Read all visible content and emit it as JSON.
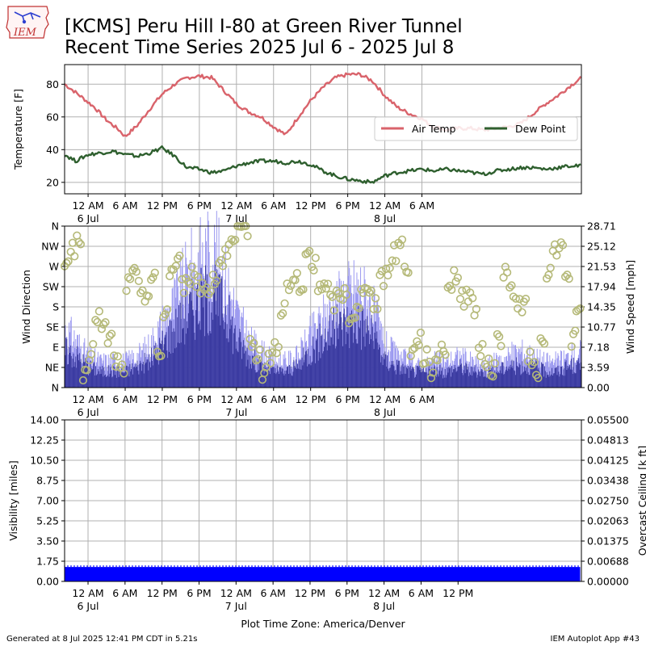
{
  "header": {
    "logo_text": "IEM",
    "title_line1": "[KCMS] Peru Hill I-80 at Green River Tunnel",
    "title_line2": "Recent Time Series 2025 Jul 6 - 2025 Jul 8"
  },
  "footer": {
    "generated": "Generated at 8 Jul 2025 12:41 PM CDT in 5.21s",
    "app": "IEM Autoplot App #43"
  },
  "colors": {
    "air_temp": "#d9636b",
    "dew_point": "#2e5f2e",
    "wind_gust_fill": "#9b99f0",
    "wind_speed_fill": "#3a3aa0",
    "wind_dir_marker": "#b5b978",
    "visibility": "#0000ff",
    "ceiling_label": "#008000",
    "grid": "#b0b0b0"
  },
  "chart_data": [
    {
      "type": "line",
      "title": "",
      "ylabel": "Temperature [F]",
      "ylim": [
        13,
        92
      ],
      "yticks": [
        "20",
        "40",
        "60",
        "80"
      ],
      "xlim_hours": [
        -3.8,
        79.8
      ],
      "xticks": [
        {
          "h": 0,
          "label": "12 AM",
          "date": "6 Jul"
        },
        {
          "h": 6,
          "label": "6 AM"
        },
        {
          "h": 12,
          "label": "12 PM"
        },
        {
          "h": 18,
          "label": "6 PM"
        },
        {
          "h": 24,
          "label": "12 AM",
          "date": "7 Jul"
        },
        {
          "h": 30,
          "label": "6 AM"
        },
        {
          "h": 36,
          "label": "12 PM"
        },
        {
          "h": 42,
          "label": "6 PM"
        },
        {
          "h": 48,
          "label": "12 AM",
          "date": "8 Jul"
        },
        {
          "h": 54,
          "label": "6 AM"
        }
      ],
      "grid": true,
      "legend_position": "right",
      "series": [
        {
          "name": "Air Temp",
          "x": [
            -3.8,
            -2,
            0,
            1,
            2,
            3,
            4,
            5,
            6,
            8,
            10,
            12,
            14,
            16,
            18,
            20,
            22,
            24,
            26,
            28,
            30,
            32,
            34,
            36,
            38,
            40,
            42,
            44,
            46,
            48,
            50,
            52,
            54,
            55,
            56,
            58,
            60,
            62,
            64,
            66,
            68,
            70,
            72,
            74,
            76,
            78,
            79.8
          ],
          "values": [
            80,
            75,
            69,
            66,
            62,
            58,
            55,
            52,
            48,
            55,
            65,
            74,
            80,
            84,
            85,
            84,
            76,
            68,
            63,
            60,
            54,
            49,
            60,
            70,
            78,
            84,
            86,
            86,
            82,
            73,
            66,
            62,
            59,
            56,
            54,
            52,
            53,
            53,
            52,
            53,
            54,
            56,
            62,
            68,
            73,
            79,
            84
          ]
        },
        {
          "name": "Dew Point",
          "x": [
            -3.8,
            -2,
            0,
            2,
            4,
            6,
            8,
            10,
            12,
            14,
            16,
            18,
            20,
            22,
            24,
            26,
            28,
            30,
            32,
            34,
            36,
            38,
            40,
            42,
            44,
            46,
            48,
            50,
            52,
            54,
            56,
            58,
            60,
            62,
            64,
            66,
            68,
            70,
            72,
            74,
            76,
            78,
            79.8
          ],
          "values": [
            37,
            33,
            37,
            38,
            39,
            37,
            36,
            38,
            41,
            36,
            29,
            28,
            26,
            27,
            30,
            32,
            33,
            33,
            32,
            33,
            31,
            27,
            24,
            22,
            21,
            20,
            24,
            26,
            27,
            28,
            27,
            28,
            27,
            26,
            25,
            27,
            28,
            29,
            29,
            28,
            29,
            30,
            30
          ]
        }
      ]
    },
    {
      "type": "area",
      "title": "",
      "ylabel": "Wind Direction",
      "ylabel_right": "Wind Speed [mph]",
      "ylim": [
        0,
        360
      ],
      "yticks": [
        "N",
        "NE",
        "E",
        "SE",
        "S",
        "SW",
        "W",
        "NW",
        "N"
      ],
      "ylim_right": [
        0,
        28.71
      ],
      "yticks_right": [
        "0.00",
        "3.59",
        "7.18",
        "10.77",
        "14.35",
        "17.94",
        "21.53",
        "25.12",
        "28.71"
      ],
      "xlim_hours": [
        -3.8,
        79.8
      ],
      "grid": true,
      "series": [
        {
          "name": "",
          "role": "wind_gust_mph",
          "x": [
            -3.8,
            -2,
            0,
            2,
            4,
            6,
            8,
            10,
            12,
            14,
            16,
            18,
            20,
            22,
            24,
            26,
            28,
            30,
            32,
            34,
            36,
            38,
            40,
            42,
            44,
            46,
            48,
            50,
            52,
            54,
            56,
            58,
            60,
            62,
            64,
            66,
            68,
            70,
            72,
            74,
            76,
            78,
            79.8
          ],
          "values": [
            11,
            9,
            6,
            5,
            5,
            5,
            6,
            8,
            12,
            16,
            21,
            24,
            26,
            22,
            14,
            9,
            7,
            5,
            5,
            6,
            10,
            13,
            16,
            18,
            19,
            15,
            8,
            6,
            5,
            4,
            5,
            5,
            6,
            5,
            4,
            5,
            6,
            7,
            6,
            5,
            5,
            6,
            7
          ]
        },
        {
          "name": "",
          "role": "wind_speed_mph",
          "x": [
            -3.8,
            -2,
            0,
            2,
            4,
            6,
            8,
            10,
            12,
            14,
            16,
            18,
            20,
            22,
            24,
            26,
            28,
            30,
            32,
            34,
            36,
            38,
            40,
            42,
            44,
            46,
            48,
            50,
            52,
            54,
            56,
            58,
            60,
            62,
            64,
            66,
            68,
            70,
            72,
            74,
            76,
            78,
            79.8
          ],
          "values": [
            7,
            6,
            4,
            3,
            3,
            3,
            4,
            5,
            8,
            11,
            14,
            16,
            17,
            15,
            9,
            6,
            4,
            3,
            3,
            4,
            7,
            9,
            11,
            12,
            12,
            10,
            5,
            4,
            3,
            3,
            3,
            3,
            4,
            3,
            3,
            3,
            4,
            4,
            4,
            3,
            3,
            4,
            4
          ]
        },
        {
          "name": "",
          "role": "wind_direction_deg",
          "x": [
            -3.5,
            -2.5,
            -1.5,
            -0.5,
            0.5,
            1.5,
            2.5,
            3.5,
            4.5,
            5.5,
            6.5,
            7.5,
            8.5,
            9.5,
            10.5,
            11.5,
            12.5,
            13.5,
            14.5,
            15.5,
            16.5,
            17.5,
            18.5,
            19.5,
            20.5,
            21.5,
            22.5,
            23.5,
            24.5,
            25.5,
            26.5,
            27.5,
            28.5,
            29.5,
            30.5,
            31.5,
            32.5,
            33.5,
            34.5,
            35.5,
            36.5,
            37.5,
            38.5,
            39.5,
            40.5,
            41.5,
            42.5,
            43.5,
            44.5,
            45.5,
            46.5,
            47.5,
            48.5,
            49.5,
            50.5,
            51.5,
            52.5,
            53.5,
            54.5,
            55.5,
            56.5,
            57.5,
            58.5,
            59.5,
            60.5,
            61.5,
            62.5,
            63.5,
            64.5,
            65.5,
            66.5,
            67.5,
            68.5,
            69.5,
            70.5,
            71.5,
            72.5,
            73.5,
            74.5,
            75.5,
            76.5,
            77.5,
            78.5,
            79.3
          ],
          "values": [
            290,
            310,
            320,
            20,
            80,
            160,
            130,
            110,
            60,
            40,
            230,
            250,
            220,
            210,
            240,
            70,
            170,
            260,
            280,
            230,
            250,
            240,
            225,
            220,
            250,
            280,
            300,
            320,
            340,
            355,
            100,
            80,
            30,
            70,
            90,
            180,
            220,
            240,
            210,
            300,
            270,
            230,
            220,
            190,
            200,
            210,
            160,
            170,
            210,
            230,
            190,
            240,
            260,
            300,
            320,
            270,
            80,
            110,
            70,
            40,
            70,
            90,
            230,
            250,
            200,
            210,
            180,
            80,
            60,
            40,
            110,
            250,
            220,
            190,
            180,
            60,
            40,
            90,
            260,
            300,
            330,
            240,
            110,
            170
          ]
        }
      ]
    },
    {
      "type": "area",
      "title": "",
      "ylabel": "Visibility [miles]",
      "ylabel_right": "Overcast Ceiling [k ft]",
      "ylim": [
        0,
        14
      ],
      "yticks": [
        "0.00",
        "1.75",
        "3.50",
        "5.25",
        "7.00",
        "8.75",
        "10.50",
        "12.25",
        "14.00"
      ],
      "ylim_right": [
        0,
        0.055
      ],
      "yticks_right": [
        "0.00000",
        "0.00688",
        "0.01375",
        "0.02063",
        "0.02750",
        "0.03438",
        "0.04125",
        "0.04813",
        "0.05500"
      ],
      "xlim_hours": [
        -3.8,
        80
      ],
      "xticks": [
        {
          "h": 0,
          "label": "12 AM",
          "date": "6 Jul"
        },
        {
          "h": 6,
          "label": "6 AM"
        },
        {
          "h": 12,
          "label": "12 PM"
        },
        {
          "h": 18,
          "label": "6 PM"
        },
        {
          "h": 24,
          "label": "12 AM",
          "date": "7 Jul"
        },
        {
          "h": 30,
          "label": "6 AM"
        },
        {
          "h": 36,
          "label": "12 PM"
        },
        {
          "h": 42,
          "label": "6 PM"
        },
        {
          "h": 48,
          "label": "12 AM",
          "date": "8 Jul"
        },
        {
          "h": 54,
          "label": "6 AM"
        },
        {
          "h": 60,
          "label": "12 PM"
        }
      ],
      "xlabel": "Plot Time Zone: America/Denver",
      "grid": true,
      "series": [
        {
          "name": "",
          "role": "visibility_miles",
          "x": [
            -3.8,
            79.8
          ],
          "values": [
            1.25,
            1.25
          ]
        }
      ]
    }
  ]
}
